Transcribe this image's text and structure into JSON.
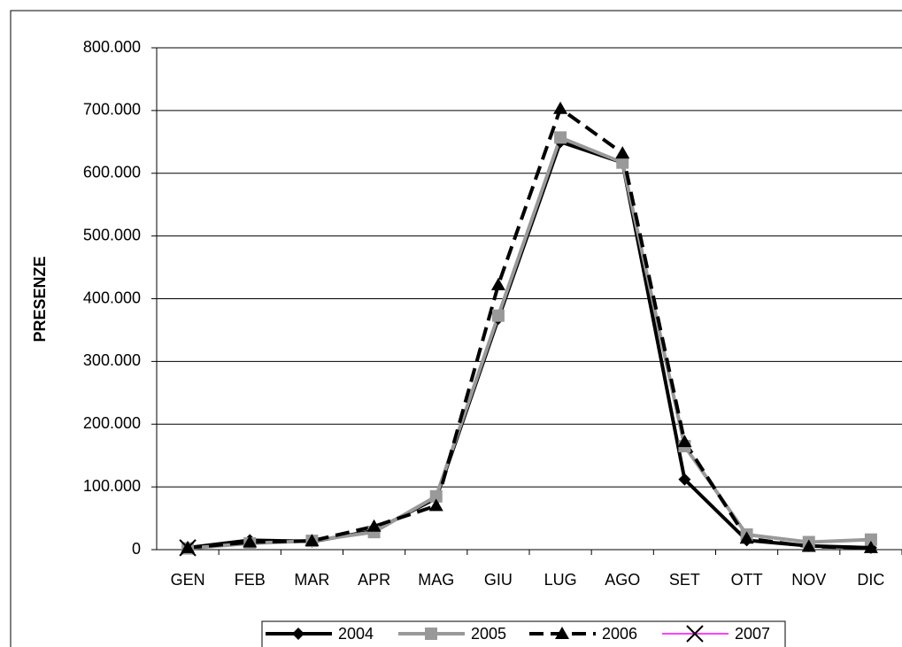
{
  "chart_data": {
    "type": "line",
    "y_label": "PRESENZE",
    "categories": [
      "GEN",
      "FEB",
      "MAR",
      "APR",
      "MAG",
      "GIU",
      "LUG",
      "AGO",
      "SET",
      "OTT",
      "NOV",
      "DIC"
    ],
    "series": [
      {
        "name": "2004",
        "color": "#000000",
        "marker": "diamond",
        "marker_color": "#000000",
        "dash": false,
        "values": [
          3000,
          15000,
          13000,
          30000,
          82000,
          368000,
          650000,
          617000,
          112000,
          15000,
          6000,
          3000
        ]
      },
      {
        "name": "2005",
        "color": "#999999",
        "marker": "square",
        "marker_color": "#999999",
        "dash": false,
        "values": [
          2000,
          10000,
          14000,
          28000,
          85000,
          373000,
          657000,
          617000,
          165000,
          24000,
          12000,
          16000
        ]
      },
      {
        "name": "2006",
        "color": "#000000",
        "marker": "triangle",
        "marker_color": "#000000",
        "dash": true,
        "values": [
          3000,
          12000,
          14000,
          37000,
          70000,
          422000,
          703000,
          632000,
          172000,
          18000,
          5000,
          3000
        ]
      },
      {
        "name": "2007",
        "color": "#ff00ff",
        "marker": "x",
        "marker_color": "#000000",
        "dash": false,
        "values": [
          3000,
          null,
          null,
          null,
          null,
          null,
          null,
          null,
          null,
          null,
          null,
          null
        ]
      }
    ],
    "ylim": [
      0,
      800000
    ],
    "yticks": [
      0,
      {
        "value": 100000,
        "label": "100.000"
      },
      {
        "value": 200000,
        "label": "200.000"
      },
      {
        "value": 300000,
        "label": "300.000"
      },
      {
        "value": 400000,
        "label": "400.000"
      },
      {
        "value": 500000,
        "label": "500.000"
      },
      {
        "value": 600000,
        "label": "600.000"
      },
      {
        "value": 700000,
        "label": "700.000"
      },
      {
        "value": 800000,
        "label": "800.000"
      }
    ],
    "grid": true,
    "legend": "bottom"
  }
}
